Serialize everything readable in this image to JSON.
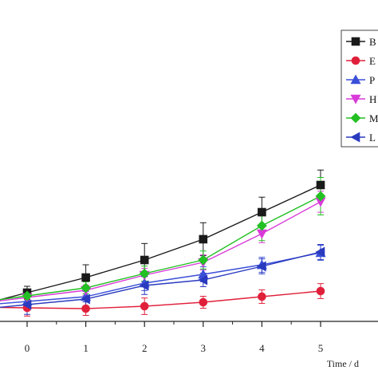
{
  "chart_data": {
    "type": "line",
    "x": [
      0,
      1,
      2,
      3,
      4,
      5
    ],
    "xlabel": "Time / d",
    "ylabel": "",
    "xlim": [
      -0.5,
      5.4
    ],
    "ylim": [
      0,
      20
    ],
    "x_ticks": [
      "0",
      "1",
      "2",
      "3",
      "4",
      "5"
    ],
    "grid": false,
    "legend_position": "top-right",
    "series": [
      {
        "name": "B",
        "color": "#1a1a1a",
        "marker": "square",
        "values": [
          3.83,
          5.85,
          8.19,
          10.96,
          14.57,
          18.19
        ],
        "errors": [
          0.85,
          1.7,
          2.2,
          2.2,
          2.0,
          2.0
        ]
      },
      {
        "name": "E",
        "color": "#e0203a",
        "marker": "circle",
        "values": [
          1.81,
          1.7,
          2.02,
          2.55,
          3.3,
          4.04
        ],
        "errors": [
          1.1,
          0.9,
          1.1,
          0.8,
          0.9,
          1.0
        ]
      },
      {
        "name": "P",
        "color": "#3a4fd8",
        "marker": "triangle-up",
        "values": [
          2.66,
          3.3,
          5.11,
          6.28,
          7.55,
          9.15
        ],
        "errors": [
          0.9,
          0.7,
          1.0,
          1.0,
          1.0,
          1.0
        ]
      },
      {
        "name": "H",
        "color": "#d93ad9",
        "marker": "triangle-down",
        "values": [
          3.19,
          4.15,
          6.17,
          7.87,
          11.7,
          15.96
        ],
        "errors": [
          0.9,
          0.7,
          0.9,
          1.0,
          1.2,
          1.4
        ]
      },
      {
        "name": "M",
        "color": "#22c022",
        "marker": "diamond",
        "values": [
          3.4,
          4.47,
          6.38,
          8.19,
          12.77,
          16.7
        ],
        "errors": [
          0.9,
          0.8,
          1.0,
          1.2,
          2.0,
          2.5
        ]
      },
      {
        "name": "L",
        "color": "#2a3abf",
        "marker": "triangle-left",
        "values": [
          2.23,
          2.98,
          4.79,
          5.53,
          7.34,
          9.26
        ],
        "errors": [
          1.3,
          1.3,
          1.2,
          0.9,
          1.0,
          1.0
        ]
      }
    ]
  }
}
